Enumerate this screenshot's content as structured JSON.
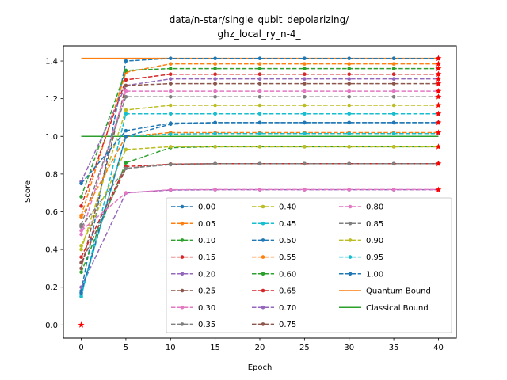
{
  "chart_data": {
    "type": "line",
    "title_lines": [
      "data/n-star/single_qubit_depolarizing/",
      "ghz_local_ry_n-4_"
    ],
    "xlabel": "Epoch",
    "ylabel": "Score",
    "xlim": [
      -2,
      42
    ],
    "ylim": [
      -0.07,
      1.48
    ],
    "x": [
      0,
      5,
      10,
      15,
      20,
      25,
      30,
      35,
      40
    ],
    "xticks": [
      0,
      5,
      10,
      15,
      20,
      25,
      30,
      35,
      40
    ],
    "yticks": [
      0.0,
      0.2,
      0.4,
      0.6,
      0.8,
      1.0,
      1.2,
      1.4
    ],
    "ytick_labels": [
      "0.0",
      "0.2",
      "0.4",
      "0.6",
      "0.8",
      "1.0",
      "1.2",
      "1.4"
    ],
    "legend_position": "lower right",
    "grid": false,
    "series": [
      {
        "name": "0.00",
        "color": "#1f77b4",
        "values": [
          0.18,
          1.4,
          1.414,
          1.414,
          1.414,
          1.414,
          1.414,
          1.414,
          1.414
        ]
      },
      {
        "name": "0.05",
        "color": "#ff7f0e",
        "values": [
          0.58,
          1.34,
          1.385,
          1.385,
          1.385,
          1.385,
          1.385,
          1.385,
          1.385
        ]
      },
      {
        "name": "0.10",
        "color": "#2ca02c",
        "values": [
          0.68,
          1.35,
          1.36,
          1.36,
          1.36,
          1.36,
          1.36,
          1.36,
          1.36
        ]
      },
      {
        "name": "0.15",
        "color": "#d62728",
        "values": [
          0.63,
          1.3,
          1.33,
          1.33,
          1.33,
          1.33,
          1.33,
          1.33,
          1.33
        ]
      },
      {
        "name": "0.20",
        "color": "#9467bd",
        "values": [
          0.76,
          1.27,
          1.305,
          1.305,
          1.305,
          1.305,
          1.305,
          1.305,
          1.305
        ]
      },
      {
        "name": "0.25",
        "color": "#8c564b",
        "values": [
          0.3,
          1.27,
          1.28,
          1.28,
          1.28,
          1.28,
          1.28,
          1.28,
          1.28
        ]
      },
      {
        "name": "0.30",
        "color": "#e377c2",
        "values": [
          0.48,
          1.24,
          1.24,
          1.24,
          1.24,
          1.24,
          1.24,
          1.24,
          1.24
        ]
      },
      {
        "name": "0.35",
        "color": "#7f7f7f",
        "values": [
          0.53,
          1.21,
          1.21,
          1.21,
          1.21,
          1.21,
          1.21,
          1.21,
          1.21
        ]
      },
      {
        "name": "0.40",
        "color": "#bcbd22",
        "values": [
          0.4,
          1.14,
          1.165,
          1.165,
          1.165,
          1.165,
          1.165,
          1.165,
          1.165
        ]
      },
      {
        "name": "0.45",
        "color": "#17becf",
        "values": [
          0.15,
          1.12,
          1.12,
          1.12,
          1.12,
          1.12,
          1.12,
          1.12,
          1.12
        ]
      },
      {
        "name": "0.50",
        "color": "#1f77b4",
        "values": [
          0.75,
          1.03,
          1.07,
          1.073,
          1.073,
          1.073,
          1.073,
          1.073,
          1.073
        ]
      },
      {
        "name": "0.55",
        "color": "#ff7f0e",
        "values": [
          0.57,
          1.0,
          1.02,
          1.02,
          1.02,
          1.02,
          1.02,
          1.02,
          1.02
        ]
      },
      {
        "name": "0.60",
        "color": "#2ca02c",
        "values": [
          0.28,
          0.86,
          0.94,
          0.945,
          0.945,
          0.945,
          0.945,
          0.945,
          0.945
        ]
      },
      {
        "name": "0.65",
        "color": "#d62728",
        "values": [
          0.36,
          0.84,
          0.852,
          0.855,
          0.855,
          0.855,
          0.855,
          0.855,
          0.855
        ]
      },
      {
        "name": "0.70",
        "color": "#9467bd",
        "values": [
          0.2,
          0.7,
          0.715,
          0.717,
          0.717,
          0.717,
          0.717,
          0.717,
          0.717
        ]
      },
      {
        "name": "0.75",
        "color": "#8c564b",
        "values": [
          0.33,
          0.83,
          0.853,
          0.855,
          0.855,
          0.855,
          0.855,
          0.855,
          0.855
        ]
      },
      {
        "name": "0.80",
        "color": "#e377c2",
        "values": [
          0.5,
          0.7,
          0.717,
          0.718,
          0.718,
          0.718,
          0.718,
          0.718,
          0.718
        ]
      },
      {
        "name": "0.85",
        "color": "#7f7f7f",
        "values": [
          0.52,
          0.83,
          0.85,
          0.855,
          0.855,
          0.855,
          0.855,
          0.855,
          0.855
        ]
      },
      {
        "name": "0.90",
        "color": "#bcbd22",
        "values": [
          0.42,
          0.93,
          0.945,
          0.945,
          0.945,
          0.945,
          0.945,
          0.945,
          0.945
        ]
      },
      {
        "name": "0.95",
        "color": "#17becf",
        "values": [
          0.16,
          1.0,
          1.012,
          1.015,
          1.015,
          1.015,
          1.015,
          1.015,
          1.015
        ]
      },
      {
        "name": "1.00",
        "color": "#1f77b4",
        "values": [
          0.17,
          1.0,
          1.065,
          1.073,
          1.073,
          1.073,
          1.073,
          1.073,
          1.073
        ]
      }
    ],
    "bounds": [
      {
        "name": "Quantum Bound",
        "color": "#ff7f0e",
        "value": 1.4142,
        "x_range": [
          0,
          40
        ]
      },
      {
        "name": "Classical Bound",
        "color": "#2ca02c",
        "value": 1.0,
        "x_range": [
          0,
          40
        ]
      }
    ],
    "star_markers": {
      "color": "#ff0000",
      "points": [
        {
          "x": 0,
          "y": 0.0
        },
        {
          "x": 40,
          "y": 1.414
        },
        {
          "x": 40,
          "y": 1.385
        },
        {
          "x": 40,
          "y": 1.36
        },
        {
          "x": 40,
          "y": 1.33
        },
        {
          "x": 40,
          "y": 1.305
        },
        {
          "x": 40,
          "y": 1.28
        },
        {
          "x": 40,
          "y": 1.24
        },
        {
          "x": 40,
          "y": 1.21
        },
        {
          "x": 40,
          "y": 1.165
        },
        {
          "x": 40,
          "y": 1.12
        },
        {
          "x": 40,
          "y": 1.073
        },
        {
          "x": 40,
          "y": 1.02
        },
        {
          "x": 40,
          "y": 0.945
        },
        {
          "x": 40,
          "y": 0.855
        },
        {
          "x": 40,
          "y": 0.717
        }
      ]
    }
  }
}
